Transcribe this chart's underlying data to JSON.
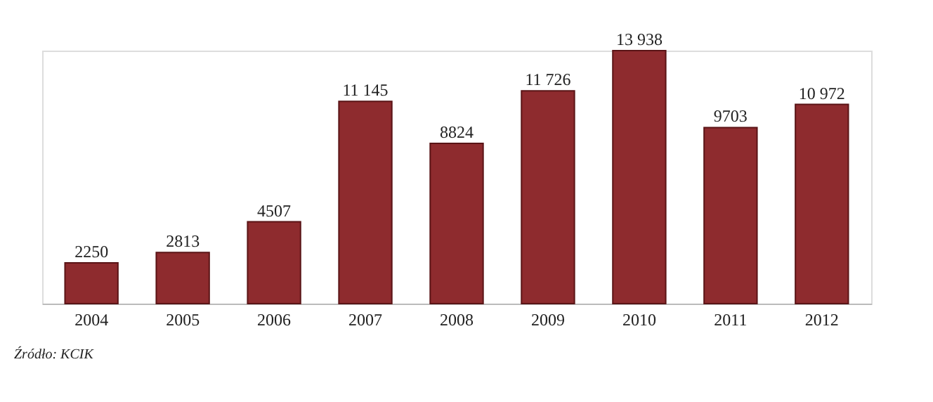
{
  "chart_data": {
    "type": "bar",
    "categories": [
      "2004",
      "2005",
      "2006",
      "2007",
      "2008",
      "2009",
      "2010",
      "2011",
      "2012"
    ],
    "values": [
      2250,
      2813,
      4507,
      11145,
      8824,
      11726,
      13938,
      9703,
      10972
    ],
    "value_labels": [
      "2250",
      "2813",
      "4507",
      "11 145",
      "8824",
      "11 726",
      "13 938",
      "9703",
      "10 972"
    ],
    "color": "#8e2b2e",
    "grid": false,
    "annotations": [
      "Źródło: KCIK"
    ]
  }
}
